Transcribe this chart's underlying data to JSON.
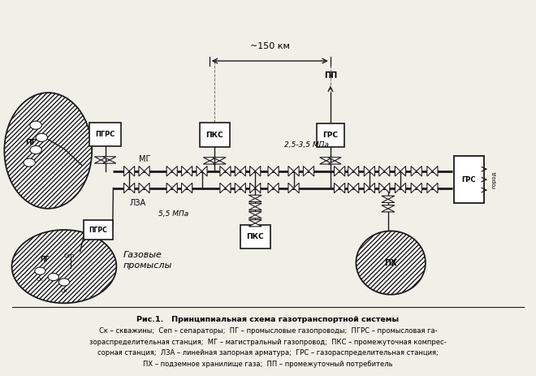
{
  "title": "Рис.1.   Принципиальная схема газотранспортной системы",
  "caption_line1": "Ск – скважины;  Сеп – сепараторы;  ПГ – промысловые газопроводы;  ПГРС – промысловая га-",
  "caption_line2": "зораспределительная станция;  МГ – магистральный газопровод;  ПКС – промежуточная компрес-",
  "caption_line3": "сорная станция;  ЛЗА – линейная запорная арматура;  ГРС – газораспределительная станция;",
  "caption_line4": "ПХ – подземное хранилище газа;  ПП – промежуточный потребитель",
  "bg_color": "#f0efe8",
  "line_color": "#1a1a1a"
}
